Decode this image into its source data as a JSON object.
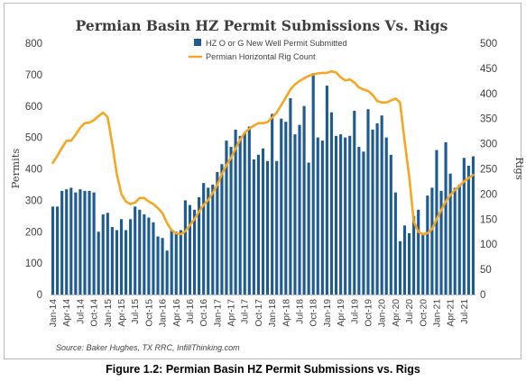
{
  "chart_data": {
    "type": "bar+line",
    "title": "Permian Basin HZ Permit Submissions Vs. Rigs",
    "ylabel_left": "Permits",
    "ylabel_right": "Rigs",
    "ylim_left": [
      0,
      800
    ],
    "ylim_right": [
      0,
      500
    ],
    "yticks_left": [
      "0",
      "100",
      "200",
      "300",
      "400",
      "500",
      "600",
      "700",
      "800"
    ],
    "yticks_right": [
      "0",
      "50",
      "100",
      "150",
      "200",
      "250",
      "300",
      "350",
      "400",
      "450",
      "500"
    ],
    "x_tick_labels": [
      "Jan-14",
      "Apr-14",
      "Jul-14",
      "Oct-14",
      "Jan-15",
      "Apr-15",
      "Jul-15",
      "Oct-15",
      "Jan-16",
      "Apr-16",
      "Jul-16",
      "Oct-16",
      "Jan-17",
      "Apr-17",
      "Jul-17",
      "Oct-17",
      "Jan-18",
      "Apr-18",
      "Jul-18",
      "Oct-18",
      "Jan-19",
      "Apr-19",
      "Jul-19",
      "Oct-19",
      "Jan-20",
      "Apr-20",
      "Jul-20",
      "Oct-20",
      "Jan-21",
      "Apr-21",
      "Jul-21"
    ],
    "legend": [
      {
        "name": "HZ O or G New Well Permit Submitted",
        "color": "#1f5b93",
        "marker": "square"
      },
      {
        "name": "Permian Horizontal Rig Count",
        "color": "#f5a623",
        "marker": "line"
      }
    ],
    "legend_position": "top-center",
    "grid": false,
    "series": [
      {
        "name": "HZ O or G New Well Permit Submitted",
        "type": "bar",
        "axis": "left",
        "color": "#1f5b93",
        "values": [
          280,
          280,
          330,
          335,
          340,
          325,
          335,
          330,
          330,
          325,
          200,
          255,
          260,
          215,
          205,
          240,
          205,
          240,
          280,
          270,
          255,
          245,
          230,
          185,
          180,
          140,
          205,
          200,
          205,
          300,
          285,
          270,
          310,
          355,
          340,
          350,
          390,
          415,
          490,
          470,
          525,
          505,
          515,
          535,
          430,
          445,
          465,
          425,
          575,
          425,
          560,
          550,
          625,
          510,
          540,
          600,
          420,
          705,
          500,
          490,
          665,
          580,
          505,
          510,
          500,
          505,
          585,
          470,
          455,
          590,
          525,
          545,
          570,
          500,
          445,
          325,
          170,
          220,
          195,
          250,
          270,
          195,
          315,
          340,
          460,
          330,
          485,
          385,
          340,
          350,
          435,
          410,
          440
        ]
      },
      {
        "name": "Permian Horizontal Rig Count",
        "type": "line",
        "axis": "right",
        "color": "#f5a623",
        "values": [
          262,
          276,
          292,
          306,
          306,
          318,
          332,
          341,
          342,
          347,
          355,
          362,
          353,
          300,
          240,
          200,
          185,
          180,
          183,
          192,
          192,
          185,
          180,
          172,
          162,
          142,
          128,
          122,
          120,
          126,
          138,
          150,
          165,
          178,
          188,
          202,
          218,
          240,
          257,
          272,
          290,
          308,
          322,
          330,
          336,
          341,
          341,
          343,
          352,
          362,
          377,
          392,
          408,
          418,
          425,
          430,
          435,
          438,
          440,
          441,
          441,
          444,
          442,
          432,
          426,
          428,
          422,
          412,
          408,
          405,
          397,
          385,
          382,
          382,
          386,
          390,
          382,
          305,
          235,
          145,
          125,
          120,
          122,
          130,
          150,
          168,
          185,
          198,
          208,
          216,
          225,
          232,
          238
        ]
      }
    ],
    "source_note": "Source: Baker Hughes, TX RRC, InfillThinking.com"
  },
  "caption": "Figure 1.2: Permian Basin HZ Permit Submissions vs. Rigs"
}
